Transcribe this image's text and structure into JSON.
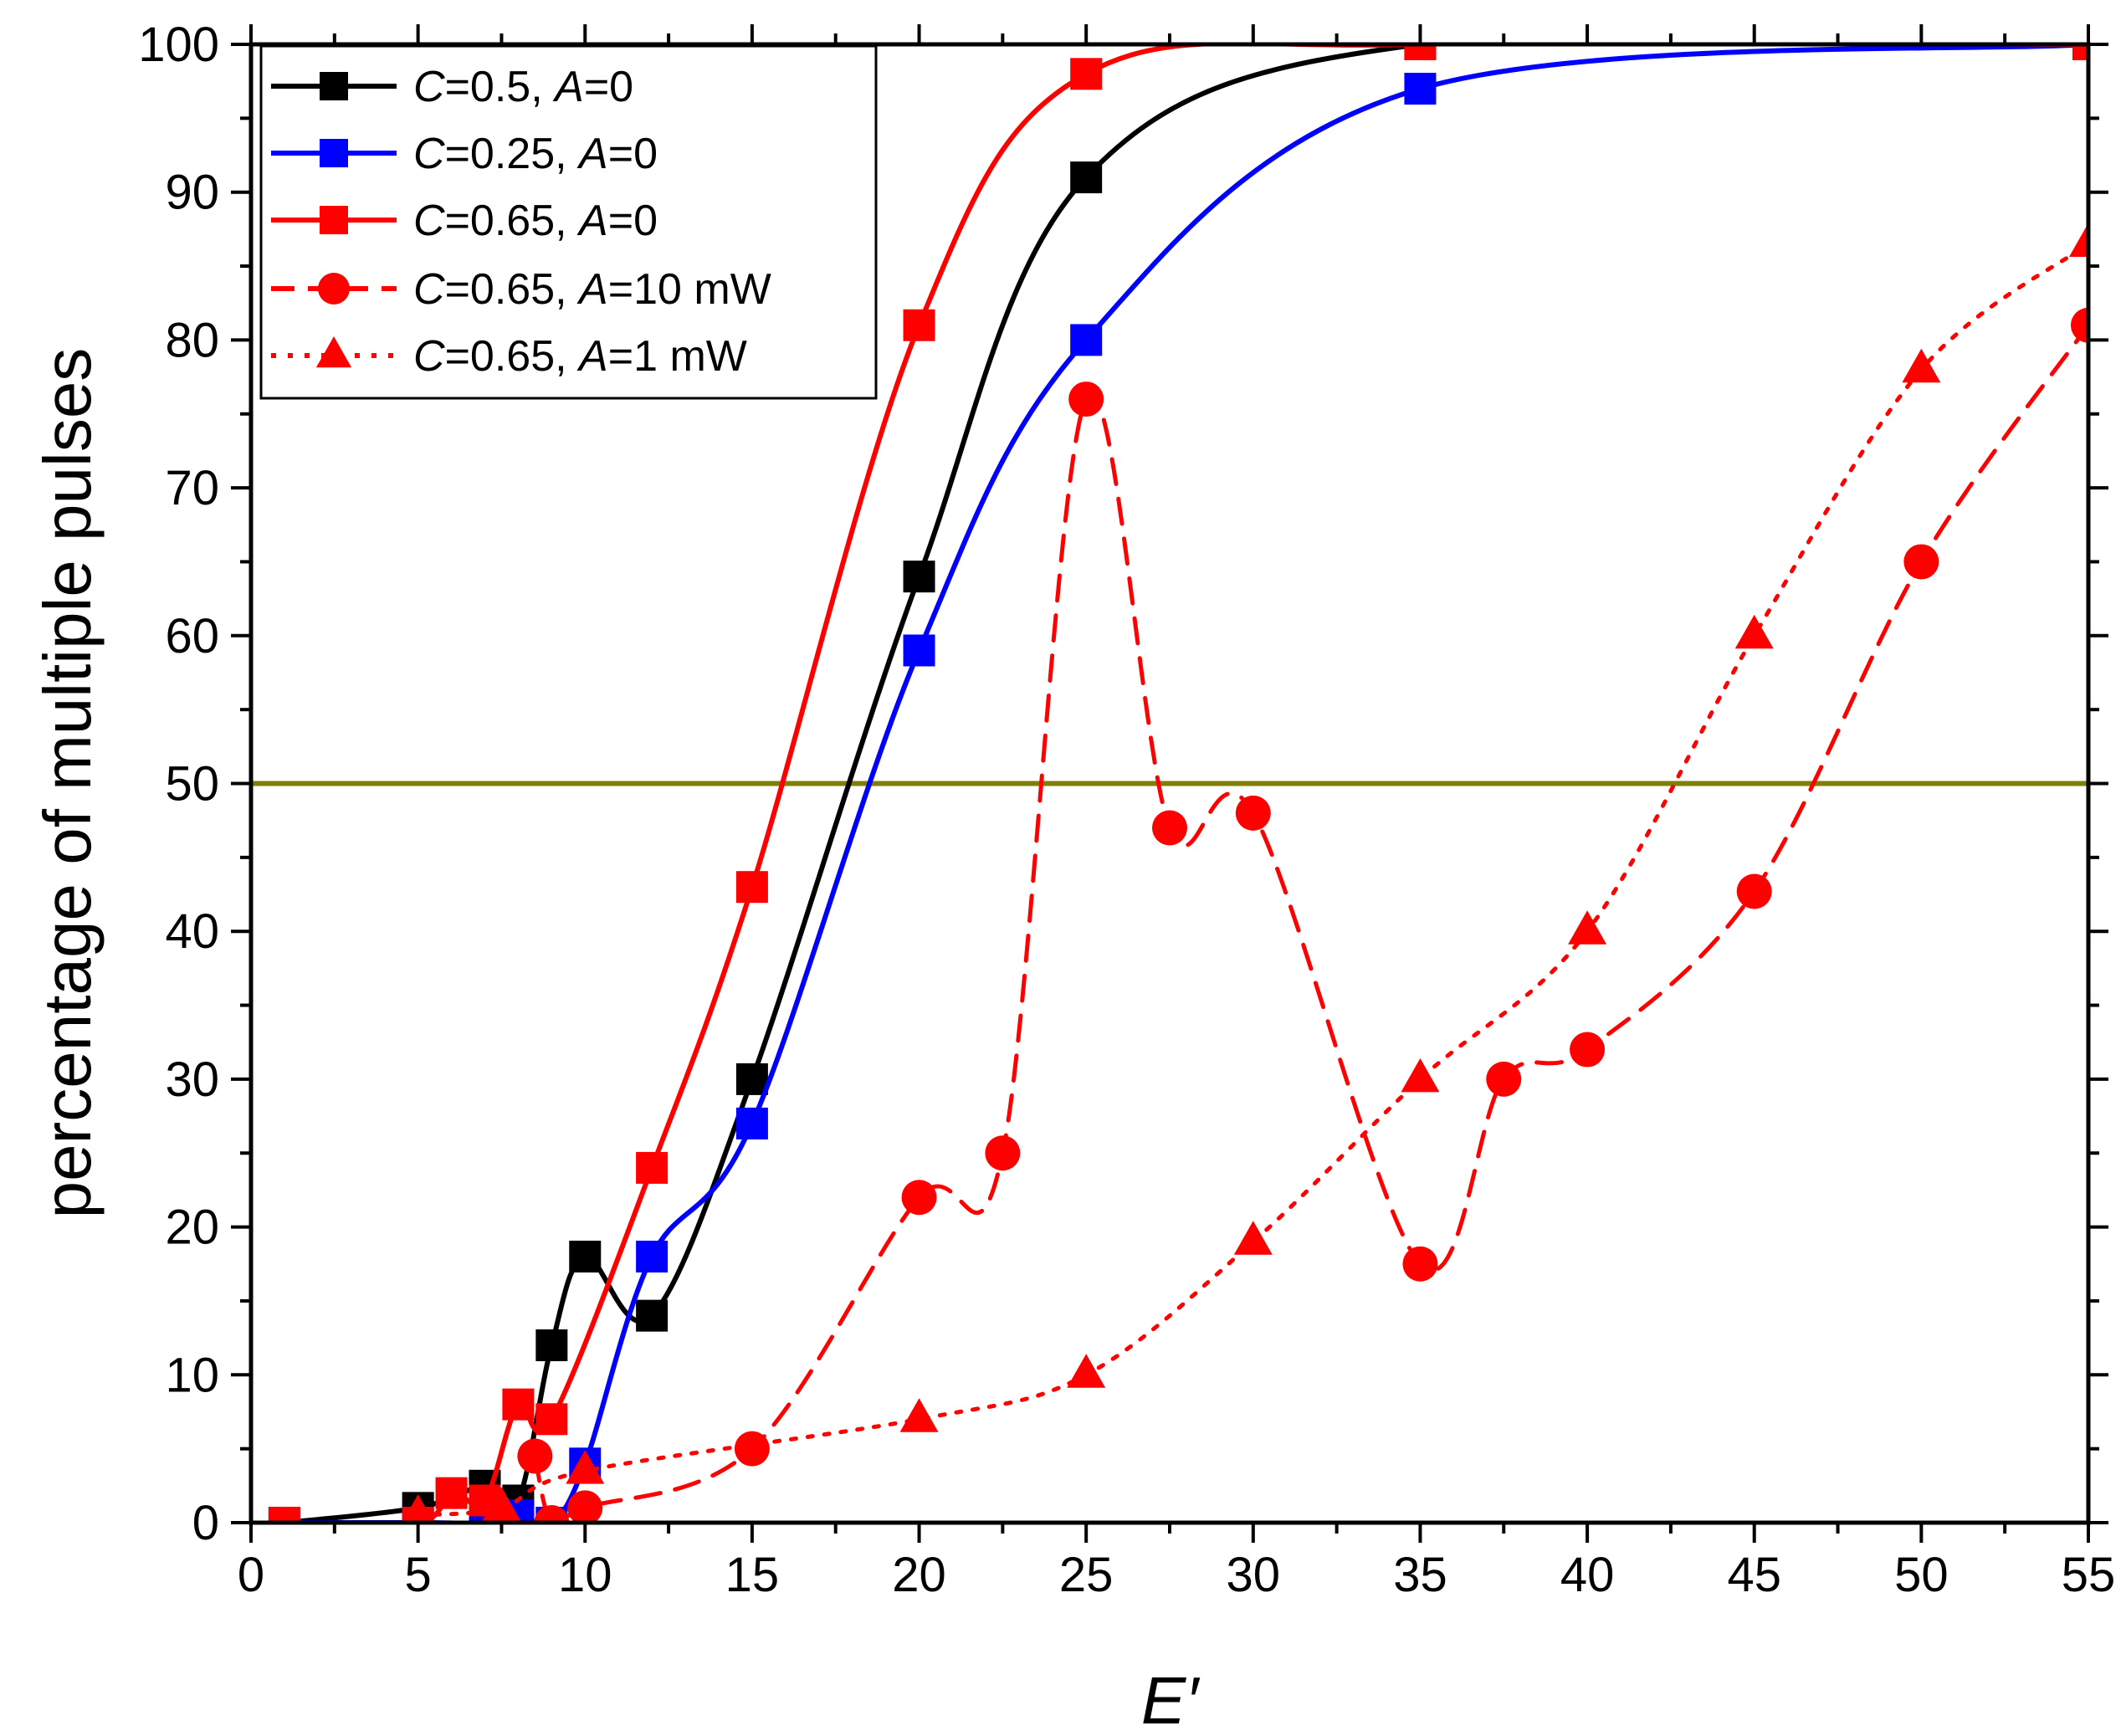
{
  "chart_data": {
    "type": "line",
    "title": "",
    "xlabel": "E′",
    "ylabel": "percentage of multiple pulses",
    "xlim": [
      0,
      55
    ],
    "ylim": [
      0,
      100
    ],
    "x_ticks": [
      0,
      5,
      10,
      15,
      20,
      25,
      30,
      35,
      40,
      45,
      50,
      55
    ],
    "y_ticks": [
      0,
      10,
      20,
      30,
      40,
      50,
      60,
      70,
      80,
      90,
      100
    ],
    "grid": false,
    "legend_position": "top-left",
    "reference_line": {
      "y": 50,
      "color": "#808000"
    },
    "series": [
      {
        "legend": [
          "C",
          "=0.5,   ",
          "A",
          "=0"
        ],
        "color": "#000000",
        "marker": "square",
        "dash": "solid",
        "points": [
          [
            1,
            0
          ],
          [
            5,
            1
          ],
          [
            7,
            2.5
          ],
          [
            8,
            1.5
          ],
          [
            9,
            12
          ],
          [
            10,
            18
          ],
          [
            12,
            14
          ],
          [
            15,
            30
          ],
          [
            20,
            64
          ],
          [
            25,
            91
          ],
          [
            35,
            100
          ],
          [
            55,
            100
          ]
        ]
      },
      {
        "legend": [
          "C",
          "=0.25, ",
          "A",
          "=0"
        ],
        "color": "#0000ff",
        "marker": "square",
        "dash": "solid",
        "points": [
          [
            1,
            0
          ],
          [
            5,
            0
          ],
          [
            7,
            0
          ],
          [
            8,
            0.5
          ],
          [
            9,
            0
          ],
          [
            10,
            4
          ],
          [
            12,
            18
          ],
          [
            15,
            27
          ],
          [
            20,
            59
          ],
          [
            25,
            80
          ],
          [
            35,
            97
          ],
          [
            55,
            100
          ]
        ]
      },
      {
        "legend": [
          "C",
          "=0.65, ",
          "A",
          "=0"
        ],
        "color": "#ff0000",
        "marker": "square",
        "dash": "solid",
        "points": [
          [
            1,
            0
          ],
          [
            5,
            0
          ],
          [
            6,
            2
          ],
          [
            7,
            1.5
          ],
          [
            8,
            8
          ],
          [
            9,
            7
          ],
          [
            12,
            24
          ],
          [
            15,
            43
          ],
          [
            20,
            81
          ],
          [
            25,
            98
          ],
          [
            35,
            100
          ],
          [
            55,
            100
          ]
        ]
      },
      {
        "legend": [
          "C",
          "=0.65, ",
          "A",
          "=10 mW"
        ],
        "color": "#ff0000",
        "marker": "circle",
        "dash": "dashed",
        "points": [
          [
            8.5,
            4.5
          ],
          [
            9,
            0
          ],
          [
            10,
            1
          ],
          [
            15,
            5
          ],
          [
            20,
            22
          ],
          [
            22.5,
            25
          ],
          [
            25,
            76
          ],
          [
            27.5,
            47
          ],
          [
            30,
            48
          ],
          [
            35,
            17.5
          ],
          [
            37.5,
            30
          ],
          [
            40,
            32
          ],
          [
            45,
            42.7
          ],
          [
            50,
            65
          ],
          [
            55,
            81
          ]
        ]
      },
      {
        "legend": [
          "C",
          "=0.65, ",
          "A",
          "=1 mW"
        ],
        "color": "#ff0000",
        "marker": "triangle",
        "dash": "dotted",
        "points": [
          [
            5,
            0.5
          ],
          [
            7.5,
            1
          ],
          [
            10,
            3.5
          ],
          [
            20,
            7
          ],
          [
            25,
            10
          ],
          [
            30,
            19
          ],
          [
            35,
            30
          ],
          [
            40,
            40
          ],
          [
            45,
            60
          ],
          [
            50,
            78
          ],
          [
            55,
            86.5
          ]
        ]
      }
    ]
  }
}
